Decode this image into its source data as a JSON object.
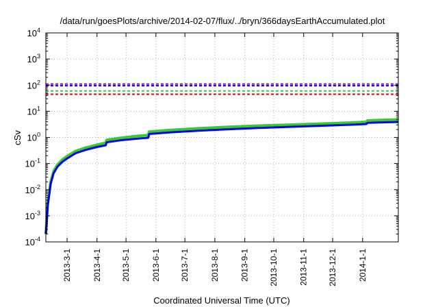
{
  "chart_data": {
    "type": "line",
    "title": "/data/run/goesPlots/archive/2014-02-07/flux/../bryn/366daysEarthAccumulated.plot",
    "xlabel": "Coordinated Universal Time (UTC)",
    "ylabel": "cSv",
    "yscale": "log",
    "ylim": [
      0.0001,
      10000
    ],
    "xlim": [
      "2013-02-07",
      "2014-02-07"
    ],
    "grid": true,
    "x_ticks": [
      "2013-3-1",
      "2013-4-1",
      "2013-5-1",
      "2013-6-1",
      "2013-7-1",
      "2013-8-1",
      "2013-9-1",
      "2013-10-1",
      "2013-11-1",
      "2013-12-1",
      "2014-1-1"
    ],
    "y_ticks": [
      {
        "base": "10",
        "exp": "-4",
        "value": 0.0001
      },
      {
        "base": "10",
        "exp": "-3",
        "value": 0.001
      },
      {
        "base": "10",
        "exp": "-2",
        "value": 0.01
      },
      {
        "base": "10",
        "exp": "-1",
        "value": 0.1
      },
      {
        "base": "10",
        "exp": "0",
        "value": 1
      },
      {
        "base": "10",
        "exp": "1",
        "value": 10
      },
      {
        "base": "10",
        "exp": "2",
        "value": 100
      },
      {
        "base": "10",
        "exp": "3",
        "value": 1000
      },
      {
        "base": "10",
        "exp": "4",
        "value": 10000
      }
    ],
    "reference_lines": [
      {
        "value": 110,
        "color": "#9400d3",
        "style": "dashed"
      },
      {
        "value": 95,
        "color": "#0000cc",
        "style": "dashed"
      },
      {
        "value": 60,
        "color": "#33cc33",
        "style": "dashed"
      },
      {
        "value": 45,
        "color": "#dd0000",
        "style": "dashed"
      }
    ],
    "series": [
      {
        "color": "#33cc33",
        "x": [
          "2013-02-07",
          "2013-02-09",
          "2013-02-12",
          "2013-02-15",
          "2013-02-19",
          "2013-02-24",
          "2013-03-01",
          "2013-03-10",
          "2013-03-20",
          "2013-04-01",
          "2013-04-10",
          "2013-04-11",
          "2013-04-25",
          "2013-05-10",
          "2013-05-24",
          "2013-05-25",
          "2013-06-15",
          "2013-07-15",
          "2013-08-15",
          "2013-09-15",
          "2013-10-15",
          "2013-11-15",
          "2013-12-15",
          "2014-01-05",
          "2014-01-06",
          "2014-01-20",
          "2014-02-07"
        ],
        "values": [
          0.0002,
          0.003,
          0.02,
          0.05,
          0.09,
          0.14,
          0.19,
          0.3,
          0.4,
          0.52,
          0.62,
          0.8,
          0.95,
          1.1,
          1.22,
          1.65,
          1.9,
          2.2,
          2.5,
          2.8,
          3.0,
          3.3,
          3.6,
          3.9,
          4.4,
          4.6,
          4.8
        ]
      },
      {
        "color": "#0000ee",
        "x": [
          "2013-02-07",
          "2013-02-09",
          "2013-02-12",
          "2013-02-15",
          "2013-02-19",
          "2013-02-24",
          "2013-03-01",
          "2013-03-10",
          "2013-03-20",
          "2013-04-01",
          "2013-04-10",
          "2013-04-11",
          "2013-04-25",
          "2013-05-10",
          "2013-05-24",
          "2013-05-25",
          "2013-06-15",
          "2013-07-15",
          "2013-08-15",
          "2013-09-15",
          "2013-10-15",
          "2013-11-15",
          "2013-12-15",
          "2014-01-05",
          "2014-01-06",
          "2014-01-20",
          "2014-02-07"
        ],
        "values": [
          0.0002,
          0.0025,
          0.017,
          0.042,
          0.075,
          0.115,
          0.155,
          0.25,
          0.33,
          0.43,
          0.5,
          0.65,
          0.77,
          0.88,
          0.97,
          1.35,
          1.55,
          1.8,
          2.05,
          2.3,
          2.5,
          2.75,
          3.0,
          3.25,
          3.6,
          3.75,
          3.9
        ]
      }
    ]
  }
}
